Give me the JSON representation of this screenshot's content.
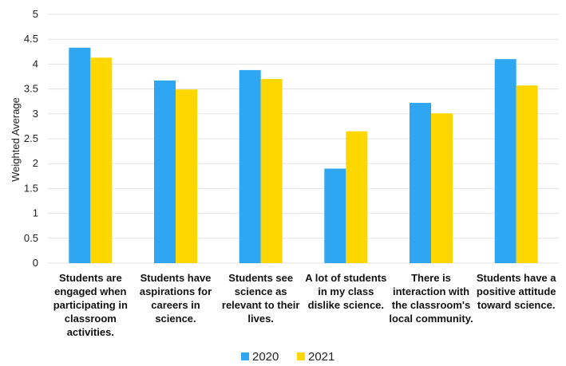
{
  "chart_data": {
    "type": "bar",
    "title": "",
    "xlabel": "",
    "ylabel": "Weighted Average",
    "ylim": [
      0,
      5
    ],
    "yticks": [
      "0",
      "0.5",
      "1",
      "1.5",
      "2",
      "2.5",
      "3",
      "3.5",
      "4",
      "4.5",
      "5"
    ],
    "grid": true,
    "legend_position": "bottom",
    "categories": [
      [
        "Students are",
        "engaged when",
        "participating in",
        "classroom",
        "activities."
      ],
      [
        "Students have",
        "aspirations for",
        "careers in",
        "science."
      ],
      [
        "Students see",
        "science as",
        "relevant to their",
        "lives."
      ],
      [
        "A lot of students",
        "in my class",
        "dislike science."
      ],
      [
        "There is",
        "interaction with",
        "the classroom's",
        "local community."
      ],
      [
        "Students have a",
        "positive attitude",
        "toward science."
      ]
    ],
    "series": [
      {
        "name": "2020",
        "color": "#2EA6F2",
        "values": [
          4.33,
          3.67,
          3.88,
          1.9,
          3.22,
          4.1
        ]
      },
      {
        "name": "2021",
        "color": "#FFD700",
        "values": [
          4.13,
          3.49,
          3.7,
          2.65,
          3.01,
          3.57
        ]
      }
    ]
  }
}
